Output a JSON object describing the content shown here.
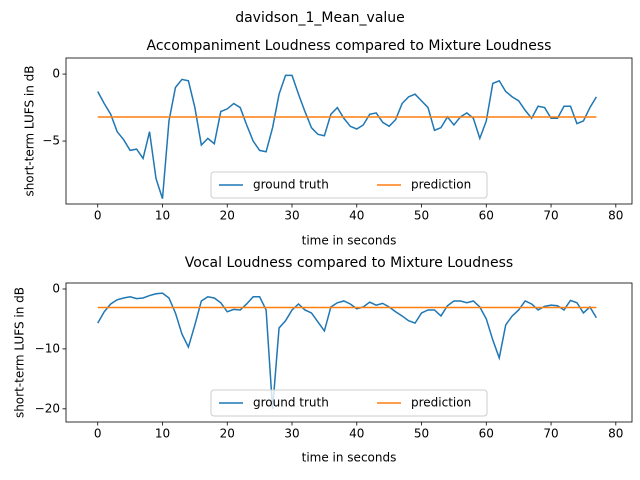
{
  "title": "davidson_1_Mean_value",
  "chart_data": [
    {
      "type": "line",
      "title": "Accompaniment Loudness compared to Mixture Loudness",
      "xlabel": "time in seconds",
      "ylabel": "short-term LUFS in dB",
      "x": [
        0,
        1,
        2,
        3,
        4,
        5,
        6,
        7,
        8,
        9,
        10,
        11,
        12,
        13,
        14,
        15,
        16,
        17,
        18,
        19,
        20,
        21,
        22,
        23,
        24,
        25,
        26,
        27,
        28,
        29,
        30,
        31,
        32,
        33,
        34,
        35,
        36,
        37,
        38,
        39,
        40,
        41,
        42,
        43,
        44,
        45,
        46,
        47,
        48,
        49,
        50,
        51,
        52,
        53,
        54,
        55,
        56,
        57,
        58,
        59,
        60,
        61,
        62,
        63,
        64,
        65,
        66,
        67,
        68,
        69,
        70,
        71,
        72,
        73,
        74,
        75,
        76,
        77
      ],
      "series": [
        {
          "name": "ground truth",
          "color": "#1f77b4",
          "values": [
            -1.3,
            -2.2,
            -3.0,
            -4.3,
            -4.9,
            -5.7,
            -5.6,
            -6.3,
            -4.3,
            -7.8,
            -9.3,
            -3.5,
            -1.0,
            -0.4,
            -0.5,
            -2.5,
            -5.3,
            -4.8,
            -5.2,
            -2.8,
            -2.6,
            -2.2,
            -2.5,
            -3.8,
            -5.0,
            -5.7,
            -5.8,
            -4.0,
            -1.5,
            -0.1,
            -0.1,
            -1.5,
            -2.8,
            -4.0,
            -4.5,
            -4.6,
            -3.0,
            -2.5,
            -3.3,
            -3.9,
            -4.1,
            -3.8,
            -3.0,
            -2.9,
            -3.6,
            -3.9,
            -3.4,
            -2.2,
            -1.7,
            -1.5,
            -2.0,
            -2.5,
            -4.2,
            -4.0,
            -3.2,
            -3.8,
            -3.2,
            -2.9,
            -3.3,
            -4.8,
            -3.5,
            -0.7,
            -0.5,
            -1.3,
            -1.7,
            -2.0,
            -2.7,
            -3.3,
            -2.4,
            -2.5,
            -3.3,
            -3.3,
            -2.4,
            -2.4,
            -3.7,
            -3.5,
            -2.5,
            -1.7
          ]
        },
        {
          "name": "prediction",
          "color": "#ff7f0e",
          "values": [
            -3.2,
            -3.2,
            -3.2,
            -3.2,
            -3.2,
            -3.2,
            -3.2,
            -3.2,
            -3.2,
            -3.2,
            -3.2,
            -3.2,
            -3.2,
            -3.2,
            -3.2,
            -3.2,
            -3.2,
            -3.2,
            -3.2,
            -3.2,
            -3.2,
            -3.2,
            -3.2,
            -3.2,
            -3.2,
            -3.2,
            -3.2,
            -3.2,
            -3.2,
            -3.2,
            -3.2,
            -3.2,
            -3.2,
            -3.2,
            -3.2,
            -3.2,
            -3.2,
            -3.2,
            -3.2,
            -3.2,
            -3.2,
            -3.2,
            -3.2,
            -3.2,
            -3.2,
            -3.2,
            -3.2,
            -3.2,
            -3.2,
            -3.2,
            -3.2,
            -3.2,
            -3.2,
            -3.2,
            -3.2,
            -3.2,
            -3.2,
            -3.2,
            -3.2,
            -3.2,
            -3.2,
            -3.2,
            -3.2,
            -3.2,
            -3.2,
            -3.2,
            -3.2,
            -3.2,
            -3.2,
            -3.2,
            -3.2,
            -3.2,
            -3.2,
            -3.2,
            -3.2,
            -3.2,
            -3.2,
            -3.2
          ]
        }
      ],
      "xlim": [
        -4.9,
        82.5
      ],
      "xticks": [
        0,
        10,
        20,
        30,
        40,
        50,
        60,
        70,
        80
      ],
      "ylim": [
        -9.7,
        1.2
      ],
      "yticks": [
        {
          "value": -5,
          "label": "−5"
        },
        0
      ],
      "legend": "lower center"
    },
    {
      "type": "line",
      "title": "Vocal Loudness compared to Mixture Loudness",
      "xlabel": "time in seconds",
      "ylabel": "short-term LUFS in dB",
      "x": [
        0,
        1,
        2,
        3,
        4,
        5,
        6,
        7,
        8,
        9,
        10,
        11,
        12,
        13,
        14,
        15,
        16,
        17,
        18,
        19,
        20,
        21,
        22,
        23,
        24,
        25,
        26,
        27,
        28,
        29,
        30,
        31,
        32,
        33,
        34,
        35,
        36,
        37,
        38,
        39,
        40,
        41,
        42,
        43,
        44,
        45,
        46,
        47,
        48,
        49,
        50,
        51,
        52,
        53,
        54,
        55,
        56,
        57,
        58,
        59,
        60,
        61,
        62,
        63,
        64,
        65,
        66,
        67,
        68,
        69,
        70,
        71,
        72,
        73,
        74,
        75,
        76,
        77
      ],
      "series": [
        {
          "name": "ground truth",
          "color": "#1f77b4",
          "values": [
            -5.7,
            -3.8,
            -2.5,
            -1.8,
            -1.5,
            -1.3,
            -1.6,
            -1.5,
            -1.1,
            -0.8,
            -0.7,
            -1.5,
            -4.0,
            -7.5,
            -9.7,
            -6.0,
            -2.0,
            -1.3,
            -1.5,
            -2.3,
            -3.8,
            -3.4,
            -3.5,
            -2.5,
            -1.3,
            -1.3,
            -3.5,
            -20.0,
            -6.5,
            -5.3,
            -3.5,
            -2.5,
            -3.5,
            -4.0,
            -5.5,
            -7.0,
            -3.0,
            -2.3,
            -2.0,
            -2.5,
            -3.3,
            -3.0,
            -2.2,
            -2.7,
            -2.4,
            -3.0,
            -3.8,
            -4.5,
            -5.3,
            -5.7,
            -4.0,
            -3.5,
            -3.5,
            -4.5,
            -2.8,
            -2.0,
            -2.0,
            -2.3,
            -2.0,
            -3.0,
            -5.0,
            -8.5,
            -11.5,
            -6.0,
            -4.5,
            -3.5,
            -2.0,
            -2.5,
            -3.5,
            -2.9,
            -2.7,
            -2.8,
            -3.5,
            -1.9,
            -2.3,
            -4.0,
            -3.0,
            -4.8
          ]
        },
        {
          "name": "prediction",
          "color": "#ff7f0e",
          "values": [
            -3.1,
            -3.1,
            -3.1,
            -3.1,
            -3.1,
            -3.1,
            -3.1,
            -3.1,
            -3.1,
            -3.1,
            -3.1,
            -3.1,
            -3.1,
            -3.1,
            -3.1,
            -3.1,
            -3.1,
            -3.1,
            -3.1,
            -3.1,
            -3.1,
            -3.1,
            -3.1,
            -3.1,
            -3.1,
            -3.1,
            -3.1,
            -3.1,
            -3.1,
            -3.1,
            -3.1,
            -3.1,
            -3.1,
            -3.1,
            -3.1,
            -3.1,
            -3.1,
            -3.1,
            -3.1,
            -3.1,
            -3.1,
            -3.1,
            -3.1,
            -3.1,
            -3.1,
            -3.1,
            -3.1,
            -3.1,
            -3.1,
            -3.1,
            -3.1,
            -3.1,
            -3.1,
            -3.1,
            -3.1,
            -3.1,
            -3.1,
            -3.1,
            -3.1,
            -3.1,
            -3.1,
            -3.1,
            -3.1,
            -3.1,
            -3.1,
            -3.1,
            -3.1,
            -3.1,
            -3.1,
            -3.1,
            -3.1,
            -3.1,
            -3.1,
            -3.1,
            -3.1,
            -3.1,
            -3.1,
            -3.1
          ]
        }
      ],
      "xlim": [
        -4.9,
        82.5
      ],
      "xticks": [
        0,
        10,
        20,
        30,
        40,
        50,
        60,
        70,
        80
      ],
      "ylim": [
        -22.2,
        1.0
      ],
      "yticks": [
        {
          "value": -20,
          "label": "−20"
        },
        {
          "value": -10,
          "label": "−10"
        },
        0
      ],
      "legend": "lower center"
    }
  ]
}
